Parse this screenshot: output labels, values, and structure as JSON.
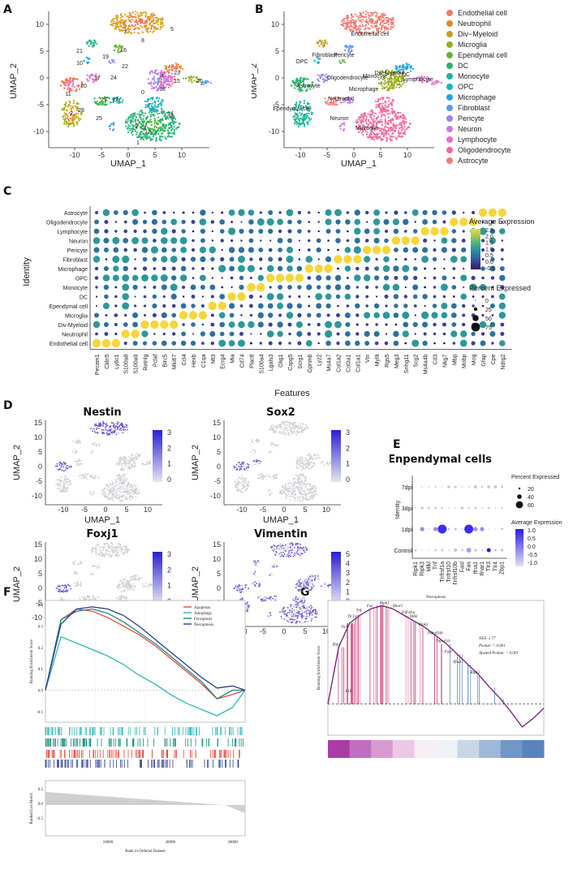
{
  "panel_labels": [
    "A",
    "B",
    "C",
    "D",
    "E",
    "F",
    "G"
  ],
  "umap": {
    "xlabel": "UMAP_1",
    "ylabel": "UMAP_2",
    "x_ticks": [
      "-10",
      "-5",
      "0",
      "5",
      "10"
    ],
    "y_ticks": [
      "10",
      "5",
      "0",
      "-5",
      "-10"
    ],
    "clusters": [
      "0",
      "1",
      "2",
      "3",
      "4",
      "5",
      "6",
      "7",
      "8",
      "9",
      "10",
      "11",
      "12",
      "13",
      "14",
      "15",
      "16",
      "17",
      "18",
      "19",
      "20",
      "21",
      "22",
      "23",
      "24",
      "25",
      "26",
      "27",
      "28"
    ],
    "celltype_labels": [
      "Endothelial cell",
      "Pericyte",
      "Fibroblast",
      "OPC",
      "Oligodendrocyte",
      "Astrocyte",
      "Ependymal cell",
      "Neutrophil",
      "Neuron",
      "Div-Myeloid",
      "Monocyte",
      "DC",
      "Lymphocyte",
      "Microphage",
      "Microglia"
    ]
  },
  "legend_b": [
    {
      "label": "Endothelial cell",
      "color": "#f07b70"
    },
    {
      "label": "Neutrophil",
      "color": "#e0882a"
    },
    {
      "label": "Div−Myeloid",
      "color": "#c4a020"
    },
    {
      "label": "Microglia",
      "color": "#9aac1c"
    },
    {
      "label": "Ependymal cell",
      "color": "#62b33a"
    },
    {
      "label": "DC",
      "color": "#27b36a"
    },
    {
      "label": "Monocyte",
      "color": "#1ab59c"
    },
    {
      "label": "OPC",
      "color": "#16b4c2"
    },
    {
      "label": "Microphage",
      "color": "#1aa8dc"
    },
    {
      "label": "Fibroblast",
      "color": "#5b9af2"
    },
    {
      "label": "Pericyte",
      "color": "#9b84ee"
    },
    {
      "label": "Neuron",
      "color": "#c879e4"
    },
    {
      "label": "Lymphocyte",
      "color": "#e66dc9"
    },
    {
      "label": "Oligodendrocyte",
      "color": "#f06b9f"
    },
    {
      "label": "Astrocyte",
      "color": "#f47a7a"
    }
  ],
  "dotplot": {
    "ylabel": "Identity",
    "xlabel": "Features",
    "identities": [
      "Astrocyte",
      "Oligodendrocyte",
      "Lymphocyte",
      "Neuron",
      "Pericyte",
      "Fibroblast",
      "Microphage",
      "OPC",
      "Monocyte",
      "DC",
      "Ependymal cell",
      "Microglia",
      "Div-Myeloid",
      "Neutrophil",
      "Endothelial cell"
    ],
    "features": [
      "Pecam1",
      "Cldn5",
      "Ly6c1",
      "S100a8",
      "S100a9",
      "Retnlg",
      "Pclaf",
      "Birc5",
      "Mki67",
      "Ccl4",
      "Hexb",
      "C1qa",
      "Mt3",
      "Ecrg4",
      "Mia",
      "Cd74",
      "Plac8",
      "S100a4",
      "Lgals3",
      "Olig1",
      "Cspg5",
      "Scrg1",
      "Gpnmb",
      "Lyz2",
      "Ms4a7",
      "Col1a2",
      "Col3a1",
      "Col1a1",
      "Vtn",
      "Myl9",
      "Rgs5",
      "Meg3",
      "Snhg11",
      "Scg2",
      "Ms4a4b",
      "Cd3",
      "Nkg7",
      "Mbp",
      "Mobp",
      "Mog",
      "Gfap",
      "Cpe",
      "Ndrg2"
    ],
    "legend_title_avg": "Average Expression",
    "avg_ticks": [
      "2.5",
      "2.0",
      "1.5",
      "1.0",
      "0.5",
      "0.0",
      "-0.5"
    ],
    "legend_title_pct": "Percent Expressed",
    "pct_ticks": [
      "0",
      "25",
      "50",
      "75"
    ]
  },
  "feature_plots": [
    {
      "title": "Nestin",
      "ticks": [
        "3",
        "2",
        "1",
        "0"
      ]
    },
    {
      "title": "Sox2",
      "ticks": [
        "3",
        "2",
        "1",
        "0"
      ]
    },
    {
      "title": "Foxj1",
      "ticks": [
        "3",
        "2",
        "1",
        "0"
      ]
    },
    {
      "title": "Vimentin",
      "ticks": [
        "5",
        "4",
        "3",
        "2",
        "1",
        "0"
      ]
    }
  ],
  "panel_e": {
    "title": "Enpendymal cells",
    "ylabel": "Identity",
    "rows": [
      "7dpi",
      "3dpi",
      "1dpi",
      "Control"
    ],
    "genes": [
      "Ripk1",
      "Ripk3",
      "Mlkl",
      "Tnf",
      "Tnfrsf1a",
      "Tnfrsf10",
      "Tnfrsf10b",
      "Fasl",
      "Fas",
      "Ifna1",
      "Ifnar1",
      "Tlr3",
      "Tlr4",
      "Zbp1"
    ],
    "pct_title": "Percent Expressed",
    "pct_ticks": [
      "20",
      "40",
      "60"
    ],
    "avg_title": "Average Expression",
    "avg_ticks": [
      "1.0",
      "0.5",
      "0.0",
      "-0.5",
      "-1.0"
    ]
  },
  "panel_f": {
    "ylabel_top": "Running Enrichment Score",
    "ylabel_bottom": "Ranked List Metric",
    "xlabel": "Rank in Ordered Dataset",
    "x_ticks": [
      "10000",
      "20000",
      "30000"
    ],
    "y_ticks": [
      "0.4",
      "0.3",
      "0.2",
      "0.1",
      "0.0",
      "-0.1"
    ],
    "metric_ticks": [
      "0.5",
      "0.0",
      "-0.5"
    ],
    "legend": [
      {
        "label": "Apoptosis",
        "color": "#e8493e"
      },
      {
        "label": "Autophagy",
        "color": "#2bb5b8"
      },
      {
        "label": "Ferroptosis",
        "color": "#1a8c7a"
      },
      {
        "label": "Necroptosis",
        "color": "#2a3d8f"
      }
    ]
  },
  "panel_g": {
    "title": "Necroptosis",
    "ylabel": "Running Enrichment Score",
    "stats": [
      "NES: 1.77",
      "Pvalue: < 0.001",
      "Ajusted Pvalue: < 0.001"
    ],
    "genes": [
      "Zbp1",
      "Tlr4",
      "Tlr3",
      "Tnf",
      "Fas",
      "Ripk1",
      "Ifnar1",
      "Tnfrsf1a",
      "Mlkl",
      "Ripk3",
      "Tnfrsf10b",
      "Tnfrsf10",
      "Fasl",
      "Ifna1",
      "Ripk2",
      "Il1b"
    ]
  },
  "chart_data": [
    {
      "type": "line",
      "title": "",
      "xlabel": "Rank in Ordered Dataset",
      "ylabel": "Running Enrichment Score",
      "x": [
        0,
        2500,
        5000,
        7500,
        10000,
        12500,
        15000,
        17500,
        20000,
        22500,
        25000,
        27500,
        30000,
        32000
      ],
      "series": [
        {
          "name": "Apoptosis",
          "values": [
            0.0,
            0.33,
            0.38,
            0.37,
            0.34,
            0.3,
            0.26,
            0.21,
            0.15,
            0.09,
            0.03,
            -0.04,
            -0.02,
            0.0
          ]
        },
        {
          "name": "Autophagy",
          "values": [
            0.0,
            0.25,
            0.22,
            0.19,
            0.16,
            0.12,
            0.07,
            0.03,
            -0.02,
            -0.06,
            -0.09,
            -0.12,
            -0.08,
            0.0
          ]
        },
        {
          "name": "Ferroptosis",
          "values": [
            0.0,
            0.33,
            0.37,
            0.38,
            0.36,
            0.32,
            0.27,
            0.22,
            0.16,
            0.1,
            0.04,
            -0.04,
            0.0,
            0.0
          ]
        },
        {
          "name": "Necroptosis",
          "values": [
            0.0,
            0.31,
            0.38,
            0.39,
            0.38,
            0.35,
            0.3,
            0.24,
            0.18,
            0.12,
            0.06,
            0.01,
            0.02,
            0.0
          ]
        }
      ],
      "ylim": [
        -0.15,
        0.42
      ]
    },
    {
      "type": "line",
      "title": "Necroptosis",
      "ylabel": "Running Enrichment Score",
      "x": [
        0,
        5,
        10,
        15,
        20,
        25,
        30,
        35,
        40,
        45,
        50,
        55,
        60,
        65,
        70,
        75,
        80,
        85,
        90,
        95,
        100
      ],
      "series": [
        {
          "name": "Necroptosis",
          "values": [
            0.0,
            0.55,
            0.78,
            0.86,
            0.92,
            0.95,
            0.92,
            0.86,
            0.8,
            0.74,
            0.66,
            0.58,
            0.48,
            0.38,
            0.28,
            0.16,
            0.05,
            -0.08,
            -0.22,
            -0.14,
            -0.04
          ]
        }
      ],
      "ylim": [
        -0.3,
        1.0
      ]
    }
  ]
}
